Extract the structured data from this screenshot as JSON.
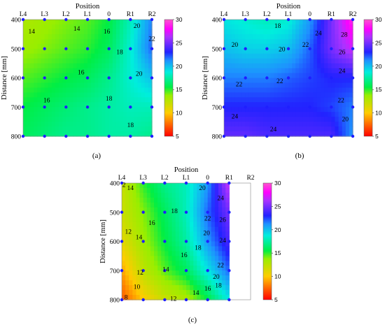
{
  "chart_data": [
    {
      "type": "heatmap",
      "caption": "(a)",
      "title": "Position",
      "ylabel": "Distance [mm]",
      "x_ticks": [
        "L4",
        "L3",
        "L2",
        "L1",
        "0",
        "R1",
        "R2"
      ],
      "y_ticks": [
        400,
        500,
        600,
        700,
        800
      ],
      "colorbar": {
        "min": 5,
        "max": 30,
        "ticks": [
          5,
          10,
          15,
          20,
          25,
          30
        ]
      },
      "grid_values": [
        [
          13,
          13.5,
          14,
          14.5,
          15.5,
          18,
          21.5
        ],
        [
          13.5,
          14,
          14.5,
          15,
          16,
          18.5,
          22
        ],
        [
          14.5,
          15,
          15.5,
          16,
          17,
          18.5,
          20
        ],
        [
          15.5,
          16,
          16.5,
          17,
          17.5,
          18,
          18
        ],
        [
          16,
          16.5,
          17,
          17,
          17.5,
          17.5,
          17
        ]
      ],
      "mask_cells": [],
      "contour_labels": [
        {
          "text": "14",
          "col": 0.4,
          "row": 0.4
        },
        {
          "text": "14",
          "col": 2.5,
          "row": 0.3
        },
        {
          "text": "16",
          "col": 3.9,
          "row": 0.4
        },
        {
          "text": "20",
          "col": 5.3,
          "row": 0.2
        },
        {
          "text": "22",
          "col": 6.0,
          "row": 0.65
        },
        {
          "text": "18",
          "col": 4.5,
          "row": 1.1
        },
        {
          "text": "16",
          "col": 2.7,
          "row": 1.8
        },
        {
          "text": "20",
          "col": 5.4,
          "row": 1.85
        },
        {
          "text": "16",
          "col": 1.1,
          "row": 2.75
        },
        {
          "text": "18",
          "col": 4.0,
          "row": 2.7
        },
        {
          "text": "18",
          "col": 5.0,
          "row": 3.6
        }
      ]
    },
    {
      "type": "heatmap",
      "caption": "(b)",
      "title": "Position",
      "ylabel": "Distance [mm]",
      "x_ticks": [
        "L4",
        "L3",
        "L2",
        "L1",
        "0",
        "R1",
        "R2"
      ],
      "y_ticks": [
        400,
        500,
        600,
        700,
        800
      ],
      "colorbar": {
        "min": 5,
        "max": 30,
        "ticks": [
          5,
          10,
          15,
          20,
          25,
          30
        ]
      },
      "grid_values": [
        [
          19,
          18.5,
          18,
          18.5,
          21,
          25,
          29
        ],
        [
          20,
          19.5,
          19.5,
          20,
          22,
          25,
          27
        ],
        [
          21.5,
          21.5,
          21.5,
          22,
          22.5,
          23,
          23
        ],
        [
          23,
          23,
          23,
          23,
          23,
          22.5,
          21.5
        ],
        [
          24.5,
          24.5,
          24,
          24,
          24,
          24,
          21
        ]
      ],
      "mask_cells": [],
      "contour_labels": [
        {
          "text": "18",
          "col": 2.5,
          "row": 0.2
        },
        {
          "text": "24",
          "col": 4.4,
          "row": 0.45
        },
        {
          "text": "28",
          "col": 5.6,
          "row": 0.5
        },
        {
          "text": "20",
          "col": 0.5,
          "row": 0.85
        },
        {
          "text": "20",
          "col": 2.7,
          "row": 1.0
        },
        {
          "text": "22",
          "col": 3.8,
          "row": 0.85
        },
        {
          "text": "26",
          "col": 5.5,
          "row": 1.1
        },
        {
          "text": "24",
          "col": 5.5,
          "row": 1.75
        },
        {
          "text": "22",
          "col": 0.7,
          "row": 2.2
        },
        {
          "text": "22",
          "col": 2.6,
          "row": 2.1
        },
        {
          "text": "22",
          "col": 5.45,
          "row": 2.75
        },
        {
          "text": "24",
          "col": 0.5,
          "row": 3.3
        },
        {
          "text": "20",
          "col": 5.65,
          "row": 3.4
        },
        {
          "text": "24",
          "col": 2.3,
          "row": 3.75
        }
      ]
    },
    {
      "type": "heatmap",
      "caption": "(c)",
      "title": "Position",
      "ylabel": "Distance [mm]",
      "x_ticks": [
        "L4",
        "L3",
        "L2",
        "L1",
        "0",
        "R1",
        "R2"
      ],
      "y_ticks": [
        400,
        500,
        600,
        700,
        800
      ],
      "colorbar": {
        "min": 5,
        "max": 30,
        "ticks": [
          5,
          10,
          15,
          20,
          25,
          30
        ]
      },
      "grid_values": [
        [
          12,
          15,
          17,
          18,
          21,
          27,
          27
        ],
        [
          12,
          14,
          16,
          18,
          22,
          25,
          25
        ],
        [
          11,
          13.5,
          15.5,
          17.5,
          21,
          24,
          24
        ],
        [
          9,
          12.5,
          14.5,
          16,
          19,
          22,
          22
        ],
        [
          7,
          10,
          12,
          13,
          15.5,
          19,
          19
        ]
      ],
      "mask_cells": [
        [
          0,
          6
        ],
        [
          1,
          6
        ],
        [
          2,
          6
        ],
        [
          3,
          6
        ],
        [
          4,
          6
        ]
      ],
      "contour_labels": [
        {
          "text": "2",
          "col": 0.1,
          "row": 0.05
        },
        {
          "text": "14",
          "col": 0.4,
          "row": 0.15
        },
        {
          "text": "20",
          "col": 3.75,
          "row": 0.15
        },
        {
          "text": "24",
          "col": 4.6,
          "row": 0.5
        },
        {
          "text": "18",
          "col": 2.45,
          "row": 0.95
        },
        {
          "text": "22",
          "col": 4.0,
          "row": 1.2
        },
        {
          "text": "26",
          "col": 4.7,
          "row": 1.25
        },
        {
          "text": "12",
          "col": 0.3,
          "row": 1.65
        },
        {
          "text": "16",
          "col": 1.4,
          "row": 1.35
        },
        {
          "text": "14",
          "col": 0.8,
          "row": 1.85
        },
        {
          "text": "20",
          "col": 3.95,
          "row": 1.7
        },
        {
          "text": "18",
          "col": 3.55,
          "row": 2.2
        },
        {
          "text": "24",
          "col": 4.7,
          "row": 1.95
        },
        {
          "text": "16",
          "col": 2.9,
          "row": 2.45
        },
        {
          "text": "12",
          "col": 0.85,
          "row": 3.05
        },
        {
          "text": "14",
          "col": 2.05,
          "row": 2.95
        },
        {
          "text": "22",
          "col": 4.6,
          "row": 2.8
        },
        {
          "text": "20",
          "col": 4.4,
          "row": 3.2
        },
        {
          "text": "18",
          "col": 4.5,
          "row": 3.5
        },
        {
          "text": "16",
          "col": 4.0,
          "row": 3.6
        },
        {
          "text": "14",
          "col": 3.45,
          "row": 3.75
        },
        {
          "text": "10",
          "col": 0.7,
          "row": 3.55
        },
        {
          "text": "8",
          "col": 0.2,
          "row": 3.9
        },
        {
          "text": "12",
          "col": 2.4,
          "row": 3.95
        }
      ]
    }
  ]
}
